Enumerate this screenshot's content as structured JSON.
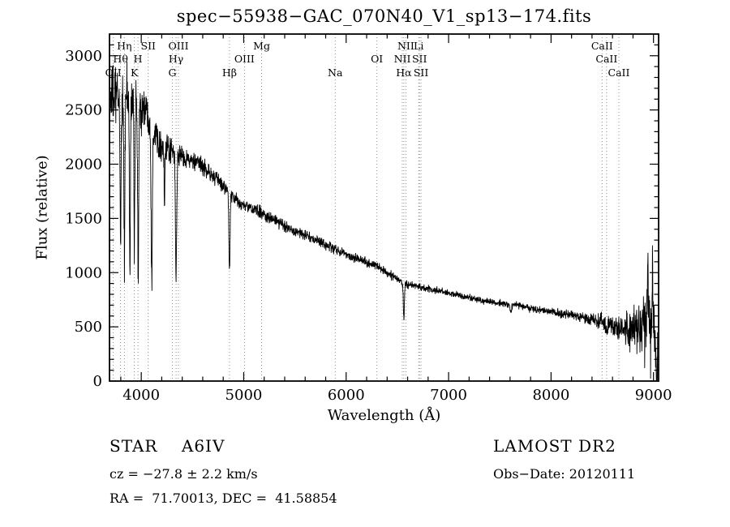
{
  "figure": {
    "title": "spec−55938−GAC_070N40_V1_sp13−174.fits",
    "xlabel": "Wavelength (Å)",
    "ylabel": "Flux (relative)"
  },
  "annotations": {
    "class_label": "STAR    A6IV",
    "survey": "LAMOST DR2",
    "cz": "cz = −27.8 ± 2.2 km/s",
    "obs_date": "Obs−Date: 20120111",
    "radec": "RA =  71.70013, DEC =  41.58854"
  },
  "chart_data": {
    "type": "line",
    "title": "spec−55938−GAC_070N40_V1_sp13−174.fits",
    "xlabel": "Wavelength (Å)",
    "ylabel": "Flux (relative)",
    "xlim": [
      3690,
      9050
    ],
    "ylim": [
      0,
      3200
    ],
    "x_range": [
      3700,
      9040
    ],
    "xticks": [
      4000,
      5000,
      6000,
      7000,
      8000,
      9000
    ],
    "yticks": [
      0,
      500,
      1000,
      1500,
      2000,
      2500,
      3000
    ],
    "x_minor_step": 200,
    "y_minor_step": 100,
    "grid": false,
    "legend": "none",
    "sample_step": 2,
    "continuum_anchors": [
      [
        3700,
        2620
      ],
      [
        3900,
        2600
      ],
      [
        4050,
        2500
      ],
      [
        4200,
        2150
      ],
      [
        4400,
        2070
      ],
      [
        4600,
        1980
      ],
      [
        4800,
        1800
      ],
      [
        4950,
        1640
      ],
      [
        5150,
        1560
      ],
      [
        5400,
        1430
      ],
      [
        5700,
        1300
      ],
      [
        6000,
        1170
      ],
      [
        6300,
        1060
      ],
      [
        6563,
        900
      ],
      [
        6800,
        850
      ],
      [
        7100,
        790
      ],
      [
        7400,
        730
      ],
      [
        7700,
        690
      ],
      [
        8000,
        640
      ],
      [
        8300,
        590
      ],
      [
        8600,
        520
      ],
      [
        8900,
        470
      ],
      [
        9040,
        430
      ]
    ],
    "absorption_lines": [
      [
        3798,
        0.5,
        7
      ],
      [
        3835,
        0.55,
        7
      ],
      [
        3889,
        0.62,
        7
      ],
      [
        3933,
        0.5,
        6
      ],
      [
        3970,
        0.62,
        8
      ],
      [
        4102,
        0.6,
        9
      ],
      [
        4227,
        0.25,
        5
      ],
      [
        4340,
        0.52,
        9
      ],
      [
        4861,
        0.42,
        8
      ],
      [
        6563,
        0.36,
        7
      ],
      [
        7605,
        0.08,
        12
      ],
      [
        8542,
        0.1,
        8
      ],
      [
        9035,
        0.9,
        12
      ]
    ],
    "emission_spikes": [
      [
        8945,
        750,
        6
      ],
      [
        8990,
        600,
        5
      ]
    ],
    "noise_anchors": [
      [
        3700,
        240
      ],
      [
        3950,
        210
      ],
      [
        4150,
        120
      ],
      [
        4400,
        75
      ],
      [
        4700,
        60
      ],
      [
        5000,
        50
      ],
      [
        5500,
        42
      ],
      [
        6000,
        38
      ],
      [
        6500,
        30
      ],
      [
        7000,
        26
      ],
      [
        7500,
        26
      ],
      [
        8000,
        30
      ],
      [
        8400,
        45
      ],
      [
        8700,
        90
      ],
      [
        8850,
        190
      ],
      [
        8950,
        330
      ],
      [
        9040,
        260
      ]
    ],
    "line_markers": [
      {
        "label": "OII",
        "wavelength": 3727,
        "row": 2
      },
      {
        "label": "Hθ",
        "wavelength": 3798,
        "row": 1
      },
      {
        "label": "Hη",
        "wavelength": 3835,
        "row": 0
      },
      {
        "label": "K",
        "wavelength": 3933,
        "row": 2
      },
      {
        "label": "H",
        "wavelength": 3968,
        "row": 1
      },
      {
        "label": "SII",
        "wavelength": 4068,
        "row": 0
      },
      {
        "label": "G",
        "wavelength": 4304,
        "row": 2
      },
      {
        "label": "Hγ",
        "wavelength": 4340,
        "row": 1
      },
      {
        "label": "OIII",
        "wavelength": 4363,
        "row": 0
      },
      {
        "label": "Hβ",
        "wavelength": 4861,
        "row": 2
      },
      {
        "label": "OIII",
        "wavelength": 5007,
        "row": 1
      },
      {
        "label": "Mg",
        "wavelength": 5175,
        "row": 0
      },
      {
        "label": "Na",
        "wavelength": 5893,
        "row": 2
      },
      {
        "label": "OI",
        "wavelength": 6300,
        "row": 1
      },
      {
        "label": "NII",
        "wavelength": 6548,
        "row": 1
      },
      {
        "label": "Hα",
        "wavelength": 6563,
        "row": 2
      },
      {
        "label": "NII",
        "wavelength": 6583,
        "row": 0
      },
      {
        "label": "Li",
        "wavelength": 6708,
        "row": 0
      },
      {
        "label": "SII",
        "wavelength": 6716,
        "row": 1
      },
      {
        "label": "SII",
        "wavelength": 6731,
        "row": 2
      },
      {
        "label": "CaII",
        "wavelength": 8498,
        "row": 0
      },
      {
        "label": "CaII",
        "wavelength": 8542,
        "row": 1
      },
      {
        "label": "CaII",
        "wavelength": 8662,
        "row": 2
      }
    ],
    "colors": {
      "trace": "#000000",
      "marker_lines": "#777777",
      "axes": "#000000"
    }
  }
}
